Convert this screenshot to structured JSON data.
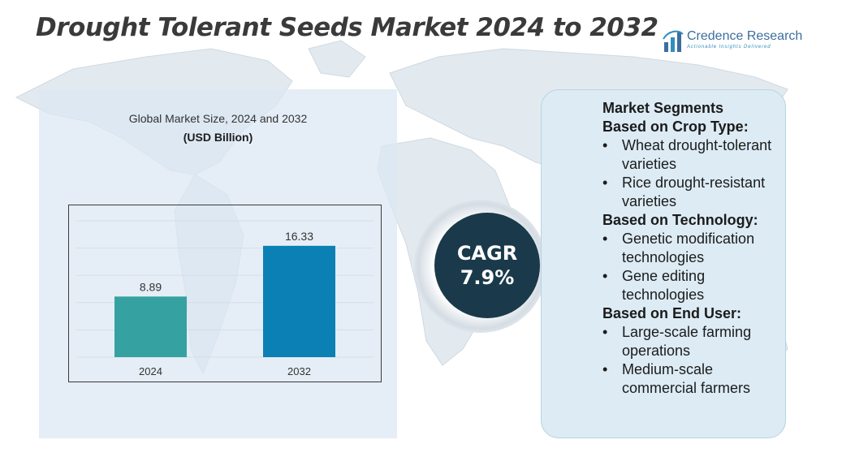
{
  "page": {
    "title": "Drought Tolerant Seeds Market 2024 to 2032"
  },
  "logo": {
    "name": "Credence Research",
    "tagline": "Actionable Insights Delivered",
    "icon": "bar-chart-logo-icon"
  },
  "chart_data": {
    "type": "bar",
    "title": "Global Market Size, 2024 and 2032",
    "unit_label": "(USD Billion)",
    "categories": [
      "2024",
      "2032"
    ],
    "values": [
      8.89,
      16.33
    ],
    "value_labels": [
      "8.89",
      "16.33"
    ],
    "colors": [
      "#36a1a1",
      "#0b80b4"
    ],
    "ylim": [
      0,
      20
    ],
    "grid": true,
    "xlabel": "",
    "ylabel": ""
  },
  "cagr": {
    "label": "CAGR",
    "value": "7.9%"
  },
  "segments": {
    "title": "Market Segments",
    "groups": [
      {
        "heading": "Based on Crop Type:",
        "items": [
          "Wheat drought-tolerant varieties",
          "Rice drought-resistant varieties"
        ]
      },
      {
        "heading": "Based on Technology:",
        "items": [
          "Genetic modification technologies",
          "Gene editing technologies"
        ]
      },
      {
        "heading": "Based on End User:",
        "items": [
          "Large-scale farming operations",
          "Medium-scale commercial farmers"
        ]
      }
    ]
  },
  "colors": {
    "title_text": "#3a3a3a",
    "chart_panel": "#dbe8f2",
    "segment_panel": "#dcebf4",
    "cagr_circle": "#1a3a4b",
    "logo_blue": "#3c6e9e"
  }
}
